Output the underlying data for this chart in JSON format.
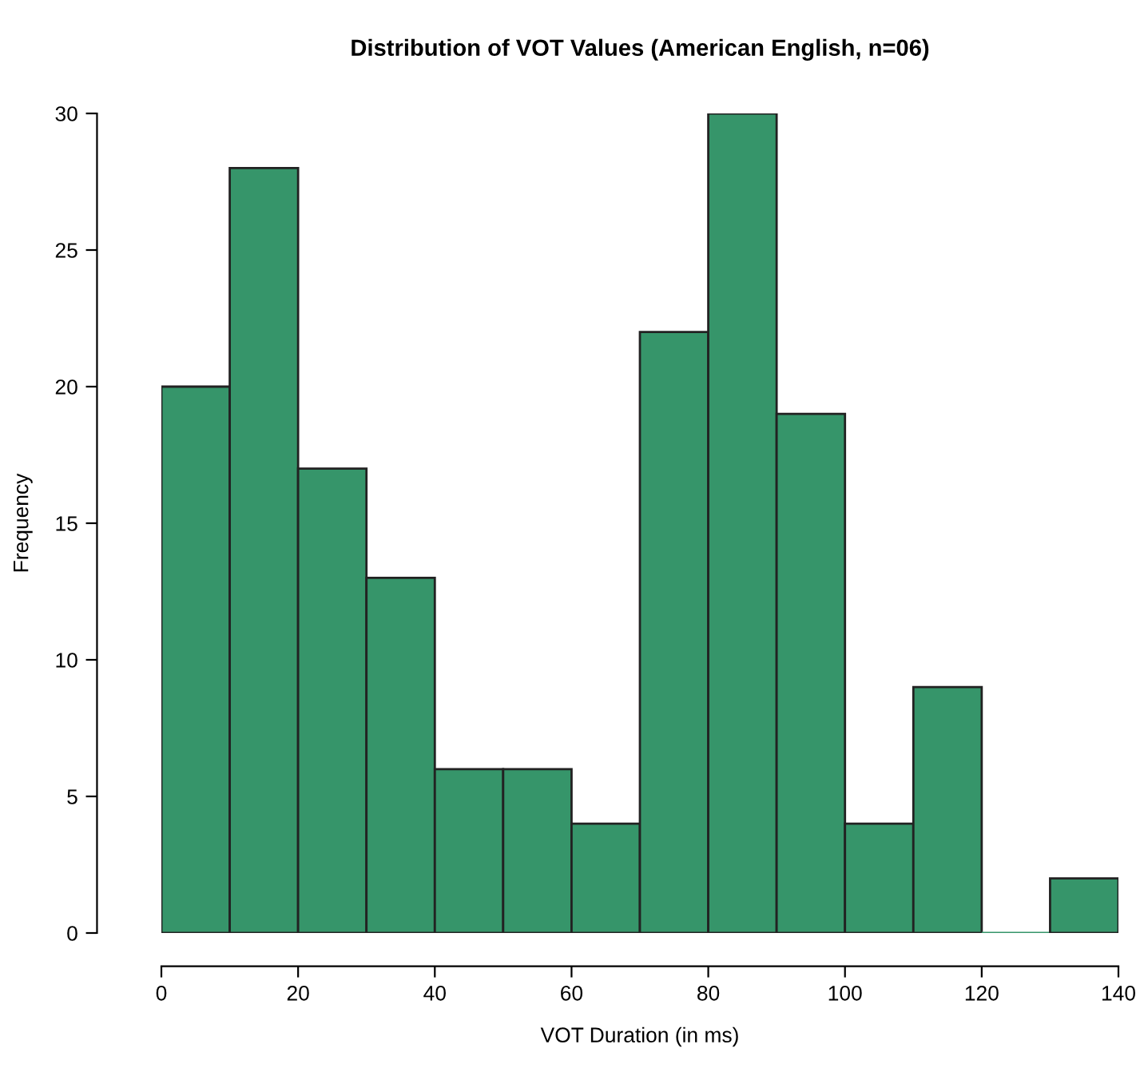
{
  "chart_data": {
    "type": "histogram",
    "title": "Distribution of VOT Values (American English, n=06)",
    "xlabel": "VOT Duration (in ms)",
    "ylabel": "Frequency",
    "bins": [
      0,
      10,
      20,
      30,
      40,
      50,
      60,
      70,
      80,
      90,
      100,
      110,
      120,
      130,
      140
    ],
    "values": [
      20,
      28,
      17,
      13,
      6,
      6,
      4,
      22,
      30,
      19,
      4,
      9,
      0,
      2
    ],
    "color": "#36956a",
    "xlim": [
      0,
      140
    ],
    "ylim": [
      0,
      30
    ],
    "xticks": [
      0,
      20,
      40,
      60,
      80,
      100,
      120,
      140
    ],
    "yticks": [
      0,
      5,
      10,
      15,
      20,
      25,
      30
    ],
    "grid": false,
    "legend": false
  }
}
